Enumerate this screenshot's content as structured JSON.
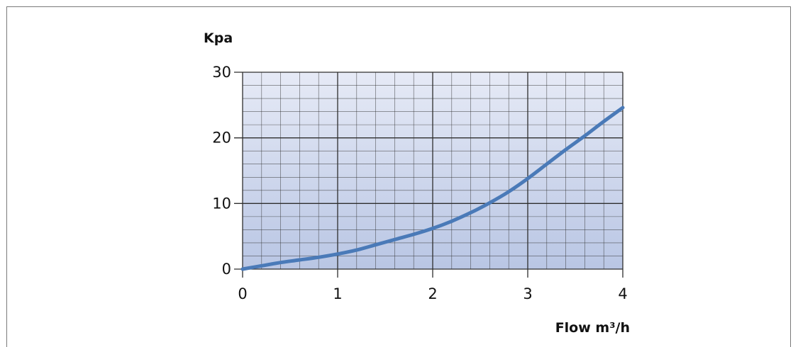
{
  "chart_data": {
    "type": "line",
    "title": "",
    "xlabel": "Flow m³/h",
    "ylabel": "Kpa",
    "xlim": [
      0,
      4
    ],
    "ylim": [
      0,
      30
    ],
    "x_ticks": [
      "0",
      "1",
      "2",
      "3",
      "4"
    ],
    "y_ticks": [
      "0",
      "10",
      "20",
      "30"
    ],
    "grid": true,
    "minor_grid": {
      "x_per_major": 5,
      "y_per_major": 5
    },
    "colors": {
      "line": "#4a7ab8",
      "grid": "#2e2e2e",
      "plot_background_top": "#e6eaf6",
      "plot_background_bottom": "#b9c6e4"
    },
    "series": [
      {
        "x": [
          0,
          0.2,
          0.4,
          0.6,
          0.8,
          1.0,
          1.2,
          1.4,
          1.6,
          1.8,
          2.0,
          2.2,
          2.4,
          2.6,
          2.8,
          3.0,
          3.2,
          3.4,
          3.6,
          3.8,
          4.0
        ],
        "values": [
          0,
          0.5,
          1.0,
          1.4,
          1.8,
          2.3,
          2.9,
          3.7,
          4.5,
          5.3,
          6.2,
          7.3,
          8.6,
          10.1,
          11.8,
          13.8,
          16.0,
          18.2,
          20.3,
          22.5,
          24.6
        ]
      }
    ]
  }
}
